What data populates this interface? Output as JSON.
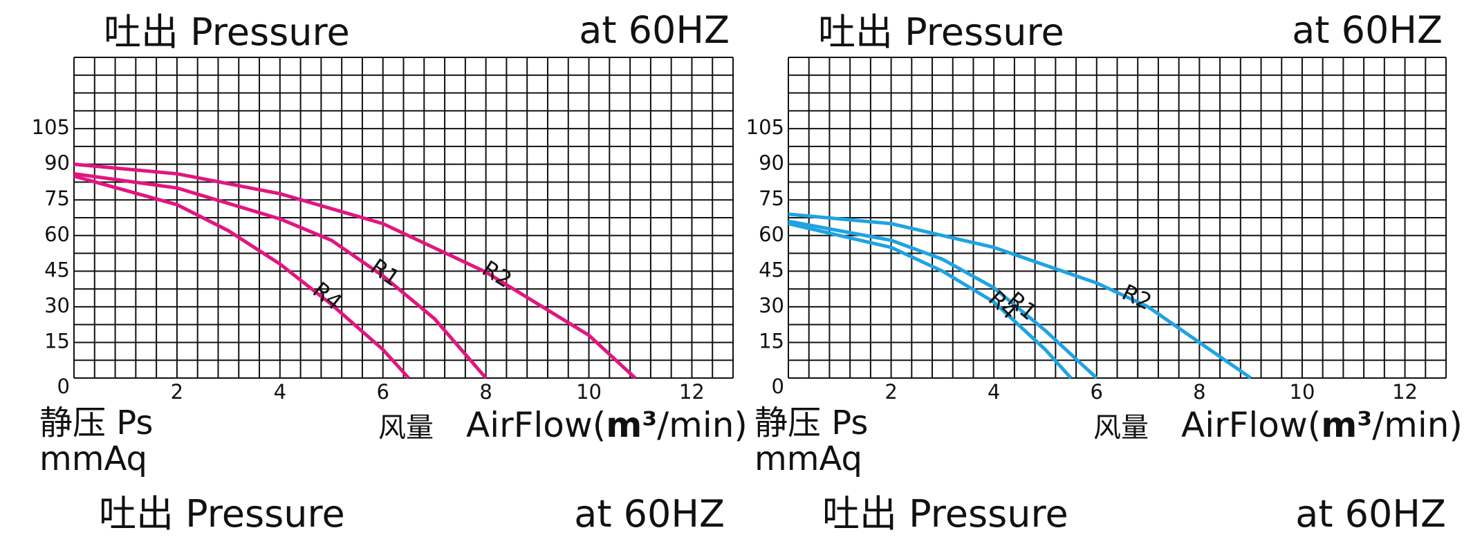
{
  "chart_data": [
    {
      "type": "line",
      "title": "吐出 Pressure",
      "subtitle": "at 60HZ",
      "ylabel": [
        "静压 Ps",
        "mmAq"
      ],
      "xlabel_cn": "风量",
      "xlabel": [
        "AirFlow(",
        "m³",
        "/min)"
      ],
      "xlim": [
        0,
        12.8
      ],
      "xticks": [
        2,
        4,
        6,
        8,
        10,
        12
      ],
      "xgrid": 0.4,
      "ylim": [
        0,
        135
      ],
      "yticks": [
        0,
        15,
        30,
        45,
        60,
        75,
        90,
        105
      ],
      "ygrid": 7.5,
      "series": [
        {
          "name": "R1",
          "color": "#e2157f",
          "x": [
            0,
            2,
            4,
            5,
            6,
            7,
            8
          ],
          "values": [
            86,
            80,
            67,
            58,
            43,
            25,
            0
          ]
        },
        {
          "name": "R2",
          "color": "#e2157f",
          "x": [
            0,
            2,
            4,
            6,
            8,
            10,
            10.9
          ],
          "values": [
            90,
            86,
            77.6,
            65,
            44.6,
            18,
            0
          ]
        },
        {
          "name": "R4",
          "color": "#e2157f",
          "x": [
            0,
            2,
            3,
            4,
            5,
            6,
            6.5
          ],
          "values": [
            85,
            73,
            62,
            48,
            31,
            12,
            0
          ]
        }
      ]
    },
    {
      "type": "line",
      "title": "吐出 Pressure",
      "subtitle": "at 60HZ",
      "ylabel": [
        "静压 Ps",
        "mmAq"
      ],
      "xlabel_cn": "风量",
      "xlabel": [
        "AirFlow(",
        "m³",
        "/min)"
      ],
      "xlim": [
        0,
        12.8
      ],
      "xticks": [
        2,
        4,
        6,
        8,
        10,
        12
      ],
      "xgrid": 0.4,
      "ylim": [
        0,
        135
      ],
      "yticks": [
        0,
        15,
        30,
        45,
        60,
        75,
        90,
        105
      ],
      "ygrid": 7.5,
      "series": [
        {
          "name": "R1",
          "color": "#1ea3e3",
          "x": [
            0,
            2,
            3,
            4,
            5,
            6
          ],
          "values": [
            66,
            58,
            50,
            38,
            20,
            0
          ]
        },
        {
          "name": "R2",
          "color": "#1ea3e3",
          "x": [
            0,
            2,
            4,
            6,
            7,
            8,
            9
          ],
          "values": [
            69,
            65,
            55,
            40,
            30,
            15,
            0
          ]
        },
        {
          "name": "R4",
          "color": "#1ea3e3",
          "x": [
            0,
            2,
            3,
            4,
            5,
            5.5
          ],
          "values": [
            65,
            55,
            45,
            32,
            12,
            0
          ]
        }
      ]
    }
  ],
  "footers": [
    {
      "left": "吐出 Pressure",
      "right": "at 60HZ"
    },
    {
      "left": "吐出 Pressure",
      "right": "at 60HZ"
    }
  ]
}
